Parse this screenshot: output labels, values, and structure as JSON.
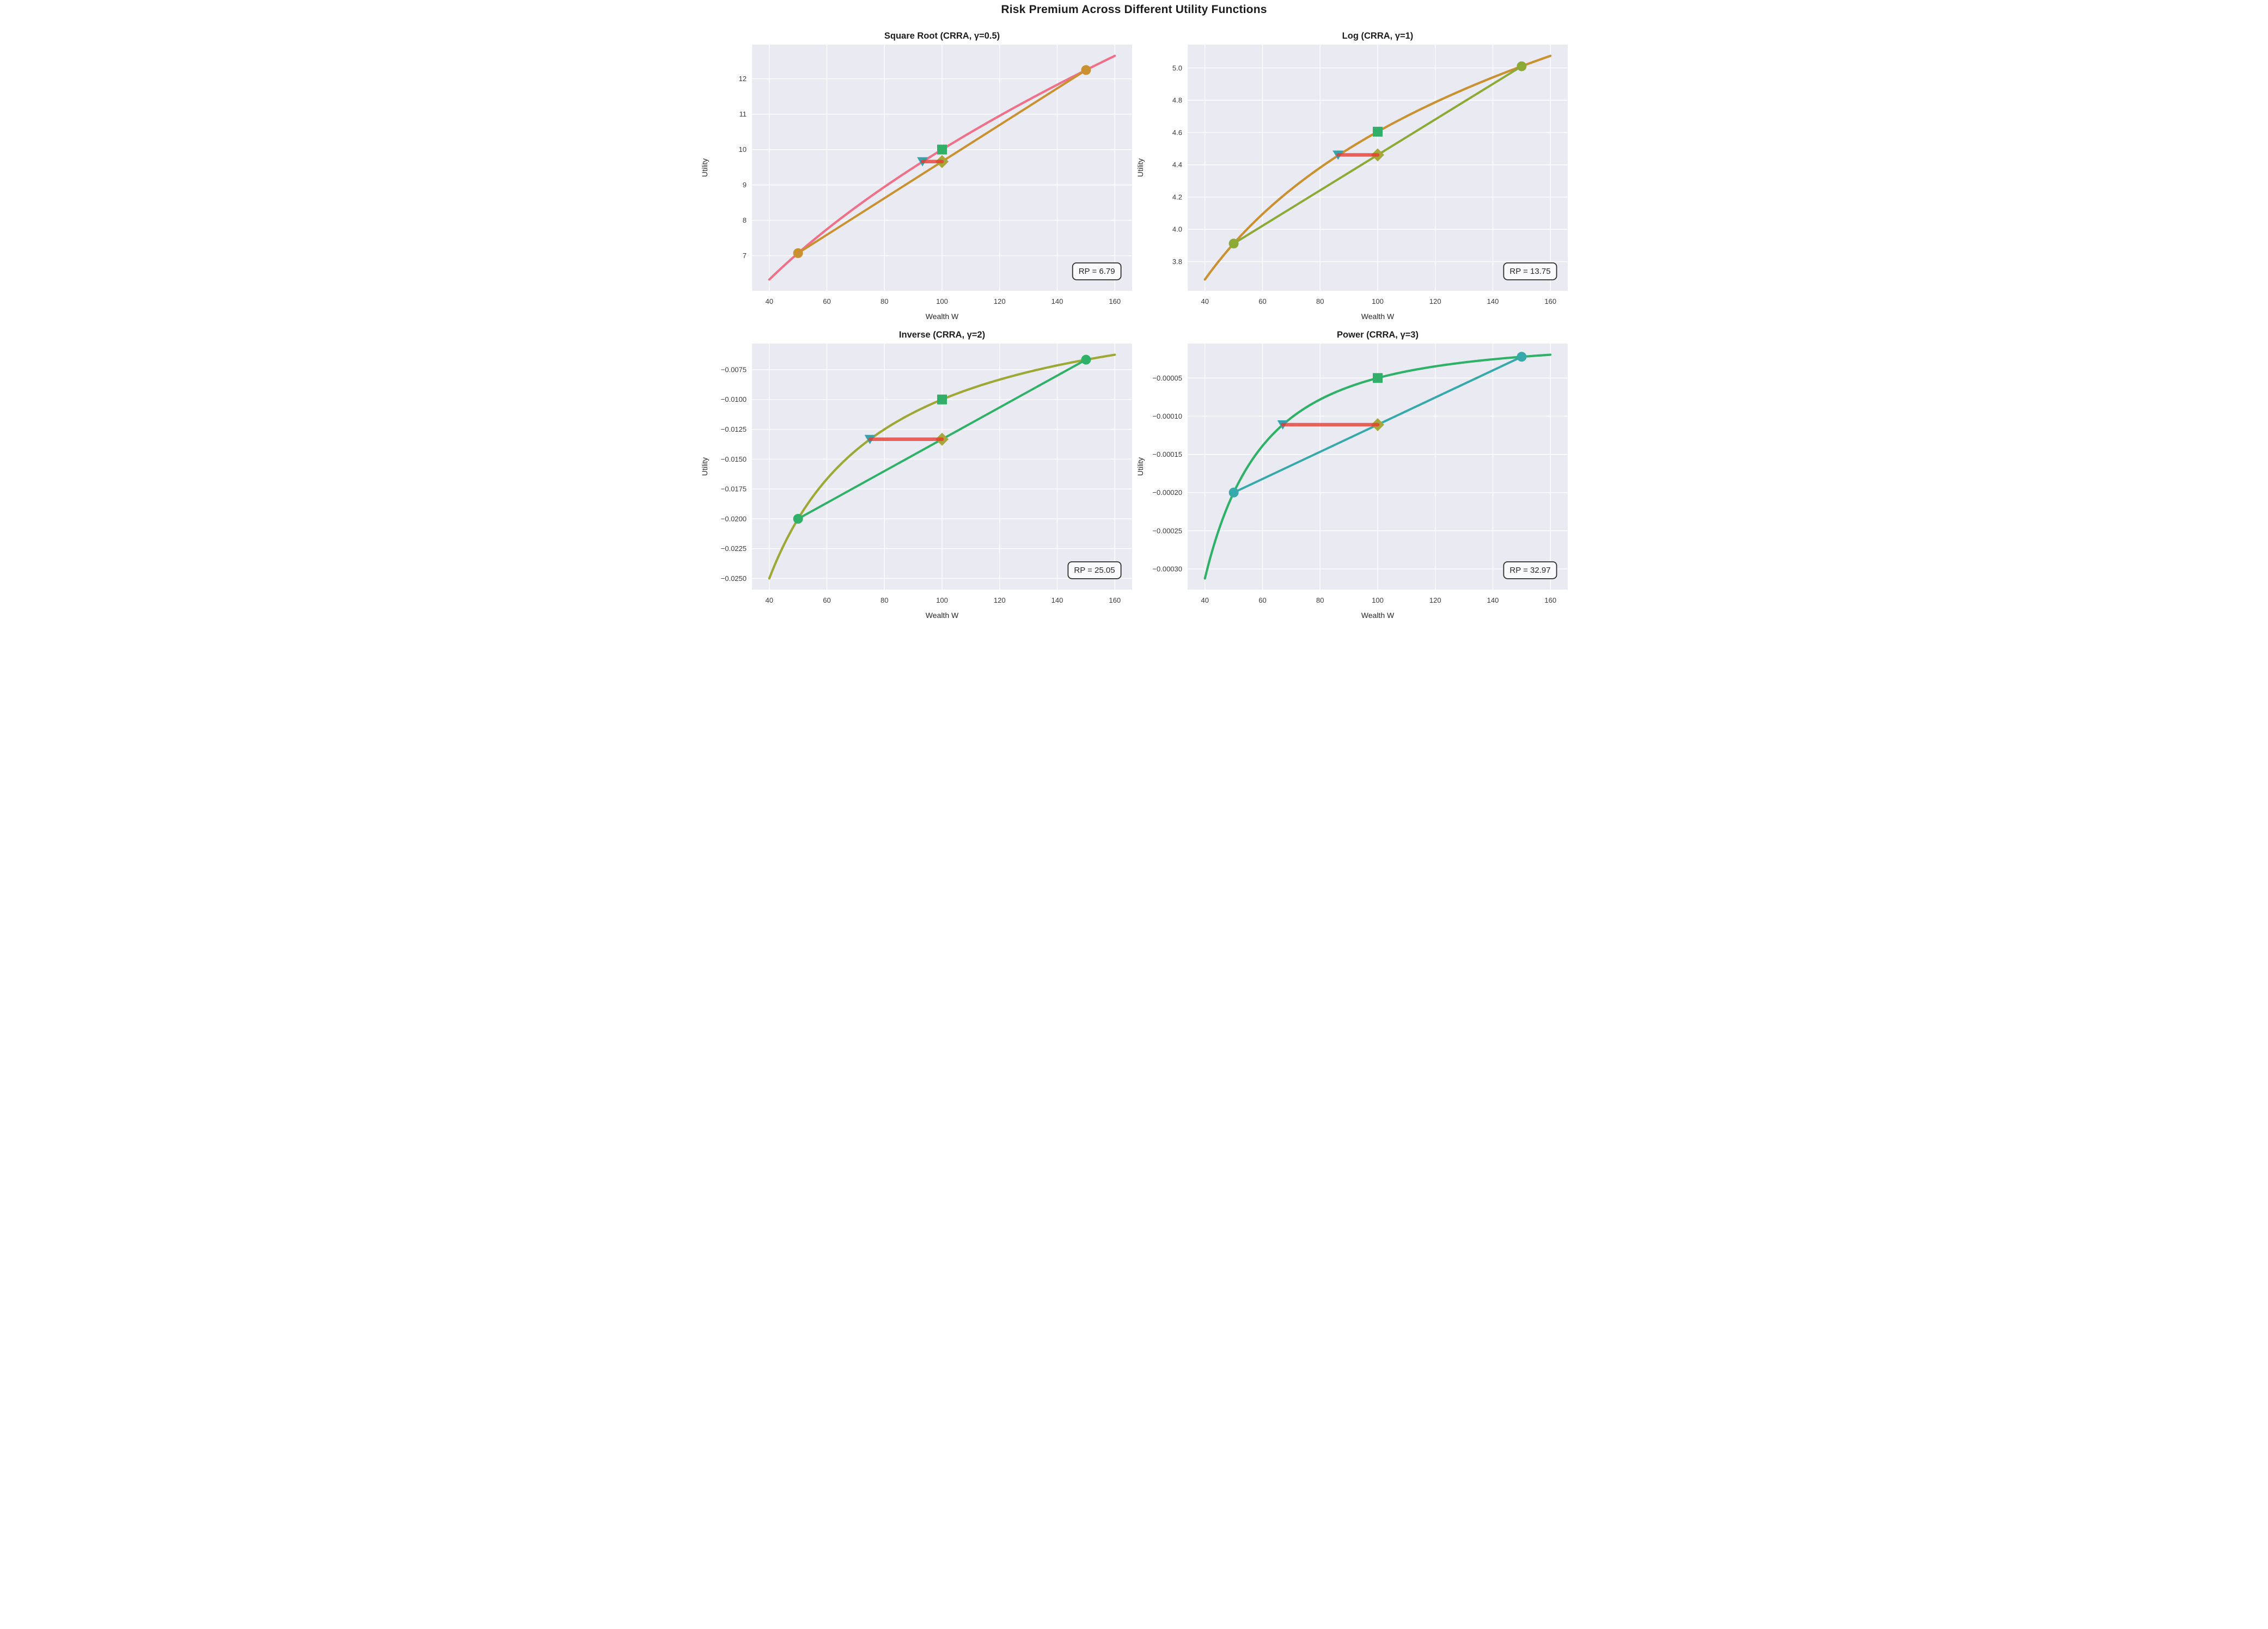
{
  "figure": {
    "title": "Risk Premium Across Different Utility Functions"
  },
  "style": {
    "background": "#ffffff",
    "plot_background": "#eaeaf2",
    "grid_color": "#ffffff",
    "title_color": "#1c1c1c",
    "tick_color": "#3a3a3a",
    "label_color": "#262626"
  },
  "markers": {
    "square_color": "#31ae67",
    "triangle_color": "#35a5ad",
    "diamond_color": "#a8a73a",
    "rp_line_color": "#e8382f",
    "rp_box_fill": "#fbfbfd",
    "rp_box_border": "#2d2d2d"
  },
  "chart_data": [
    {
      "type": "line",
      "title": "Square Root (CRRA, γ=0.5)",
      "xlabel": "Wealth W",
      "ylabel": "Utility",
      "utility": "sqrt",
      "curve_color": "#ef7089",
      "chord_color": "#c9912f",
      "x_domain": [
        34,
        166
      ],
      "y_domain": [
        6.0084,
        12.9653
      ],
      "curve_w_range": [
        40,
        160
      ],
      "x_ticks": {
        "values": [
          40,
          60,
          80,
          100,
          120,
          140,
          160
        ],
        "labels": [
          "40",
          "60",
          "80",
          "100",
          "120",
          "140",
          "160"
        ]
      },
      "y_ticks": {
        "values": [
          7,
          8,
          9,
          10,
          11,
          12
        ],
        "labels": [
          "7",
          "8",
          "9",
          "10",
          "11",
          "12"
        ]
      },
      "points": {
        "outcome_low": [
          50,
          7.0711
        ],
        "outcome_high": [
          150,
          12.2474
        ],
        "u_at_expected_wealth": [
          100,
          10.0
        ],
        "expected_utility": [
          100,
          9.6593
        ],
        "certainty_equivalent": [
          93.21,
          9.6593
        ]
      },
      "risk_premium": 6.79,
      "rp_label": "RP = 6.79"
    },
    {
      "type": "line",
      "title": "Log (CRRA, γ=1)",
      "xlabel": "Wealth W",
      "ylabel": "Utility",
      "utility": "log",
      "curve_color": "#c9912f",
      "chord_color": "#8caa35",
      "x_domain": [
        34,
        166
      ],
      "y_domain": [
        3.6196,
        5.1445
      ],
      "curve_w_range": [
        40,
        160
      ],
      "x_ticks": {
        "values": [
          40,
          60,
          80,
          100,
          120,
          140,
          160
        ],
        "labels": [
          "40",
          "60",
          "80",
          "100",
          "120",
          "140",
          "160"
        ]
      },
      "y_ticks": {
        "values": [
          3.8,
          4.0,
          4.2,
          4.4,
          4.6,
          4.8,
          5.0
        ],
        "labels": [
          "3.8",
          "4.0",
          "4.2",
          "4.4",
          "4.6",
          "4.8",
          "5.0"
        ]
      },
      "points": {
        "outcome_low": [
          50,
          3.912
        ],
        "outcome_high": [
          150,
          5.0106
        ],
        "u_at_expected_wealth": [
          100,
          4.6052
        ],
        "expected_utility": [
          100,
          4.4613
        ],
        "certainty_equivalent": [
          86.25,
          4.4613
        ]
      },
      "risk_premium": 13.75,
      "rp_label": "RP = 13.75"
    },
    {
      "type": "line",
      "title": "Inverse (CRRA, γ=2)",
      "xlabel": "Wealth W",
      "ylabel": "Utility",
      "utility": "inverse",
      "curve_color": "#9ea835",
      "chord_color": "#2fb168",
      "x_domain": [
        34,
        166
      ],
      "y_domain": [
        -0.0259375,
        -0.0053125
      ],
      "curve_w_range": [
        40,
        160
      ],
      "x_ticks": {
        "values": [
          40,
          60,
          80,
          100,
          120,
          140,
          160
        ],
        "labels": [
          "40",
          "60",
          "80",
          "100",
          "120",
          "140",
          "160"
        ]
      },
      "y_ticks": {
        "values": [
          -0.025,
          -0.0225,
          -0.02,
          -0.0175,
          -0.015,
          -0.0125,
          -0.01,
          -0.0075
        ],
        "labels": [
          "−0.0250",
          "−0.0225",
          "−0.0200",
          "−0.0175",
          "−0.0150",
          "−0.0125",
          "−0.0100",
          "−0.0075"
        ]
      },
      "points": {
        "outcome_low": [
          50,
          -0.02
        ],
        "outcome_high": [
          150,
          -0.0066667
        ],
        "u_at_expected_wealth": [
          100,
          -0.01
        ],
        "expected_utility": [
          100,
          -0.0133333
        ],
        "certainty_equivalent": [
          74.95,
          -0.0133333
        ]
      },
      "risk_premium": 25.05,
      "rp_label": "RP = 25.05"
    },
    {
      "type": "line",
      "title": "Power (CRRA, γ=3)",
      "xlabel": "Wealth W",
      "ylabel": "Utility",
      "utility": "power3",
      "curve_color": "#2fb168",
      "chord_color": "#36a9ab",
      "x_domain": [
        34,
        166
      ],
      "y_domain": [
        -0.000327148,
        -4.8828e-06
      ],
      "curve_w_range": [
        40,
        160
      ],
      "x_ticks": {
        "values": [
          40,
          60,
          80,
          100,
          120,
          140,
          160
        ],
        "labels": [
          "40",
          "60",
          "80",
          "100",
          "120",
          "140",
          "160"
        ]
      },
      "y_ticks": {
        "values": [
          -0.0003,
          -0.00025,
          -0.0002,
          -0.00015,
          -0.0001,
          -5e-05
        ],
        "labels": [
          "−0.00030",
          "−0.00025",
          "−0.00020",
          "−0.00015",
          "−0.00010",
          "−0.00005"
        ]
      },
      "points": {
        "outcome_low": [
          50,
          -0.0002
        ],
        "outcome_high": [
          150,
          -2.22e-05
        ],
        "u_at_expected_wealth": [
          100,
          -5e-05
        ],
        "expected_utility": [
          100,
          -0.0001111
        ],
        "certainty_equivalent": [
          67.03,
          -0.0001111
        ]
      },
      "risk_premium": 32.97,
      "rp_label": "RP = 32.97"
    }
  ]
}
